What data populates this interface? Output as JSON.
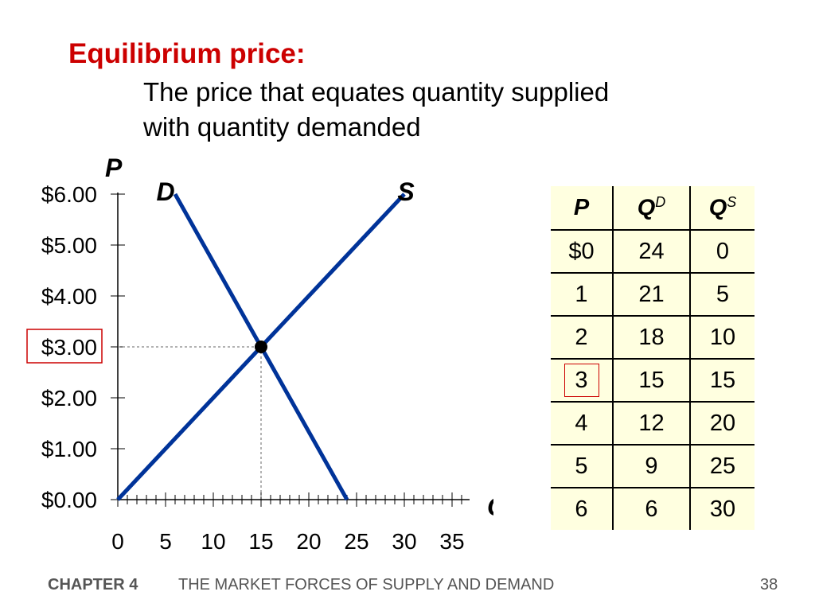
{
  "slide": {
    "title": "Equilibrium price:",
    "definition_line1": "The price that equates quantity supplied",
    "definition_line2": "with quantity demanded"
  },
  "chart_data": {
    "type": "line",
    "ylabel": "P",
    "xlabel": "Q",
    "xlim": [
      0,
      35
    ],
    "ylim": [
      0,
      6
    ],
    "x_ticks": [
      0,
      5,
      10,
      15,
      20,
      25,
      30,
      35
    ],
    "y_ticks": [
      0,
      1,
      2,
      3,
      4,
      5,
      6
    ],
    "y_tick_labels": [
      "$0.00",
      "$1.00",
      "$2.00",
      "$3.00",
      "$4.00",
      "$5.00",
      "$6.00"
    ],
    "series": [
      {
        "name": "D",
        "x": [
          24,
          21,
          18,
          15,
          12,
          9,
          6
        ],
        "y": [
          0,
          1,
          2,
          3,
          4,
          5,
          6
        ]
      },
      {
        "name": "S",
        "x": [
          0,
          5,
          10,
          15,
          20,
          25,
          30
        ],
        "y": [
          0,
          1,
          2,
          3,
          4,
          5,
          6
        ]
      }
    ],
    "equilibrium": {
      "x": 15,
      "y": 3
    },
    "highlighted_price_label": "$3.00",
    "line_color": "#003399"
  },
  "table": {
    "headers": [
      "P",
      "Q",
      "D",
      "Q",
      "S"
    ],
    "rows": [
      [
        "$0",
        "24",
        "0"
      ],
      [
        "1",
        "21",
        "5"
      ],
      [
        "2",
        "18",
        "10"
      ],
      [
        "3",
        "15",
        "15"
      ],
      [
        "4",
        "12",
        "20"
      ],
      [
        "5",
        "9",
        "25"
      ],
      [
        "6",
        "6",
        "30"
      ]
    ],
    "highlight_color": "#cc0000"
  },
  "footer": {
    "chapter": "CHAPTER 4",
    "title": "THE MARKET FORCES OF SUPPLY AND DEMAND",
    "page": "38"
  }
}
